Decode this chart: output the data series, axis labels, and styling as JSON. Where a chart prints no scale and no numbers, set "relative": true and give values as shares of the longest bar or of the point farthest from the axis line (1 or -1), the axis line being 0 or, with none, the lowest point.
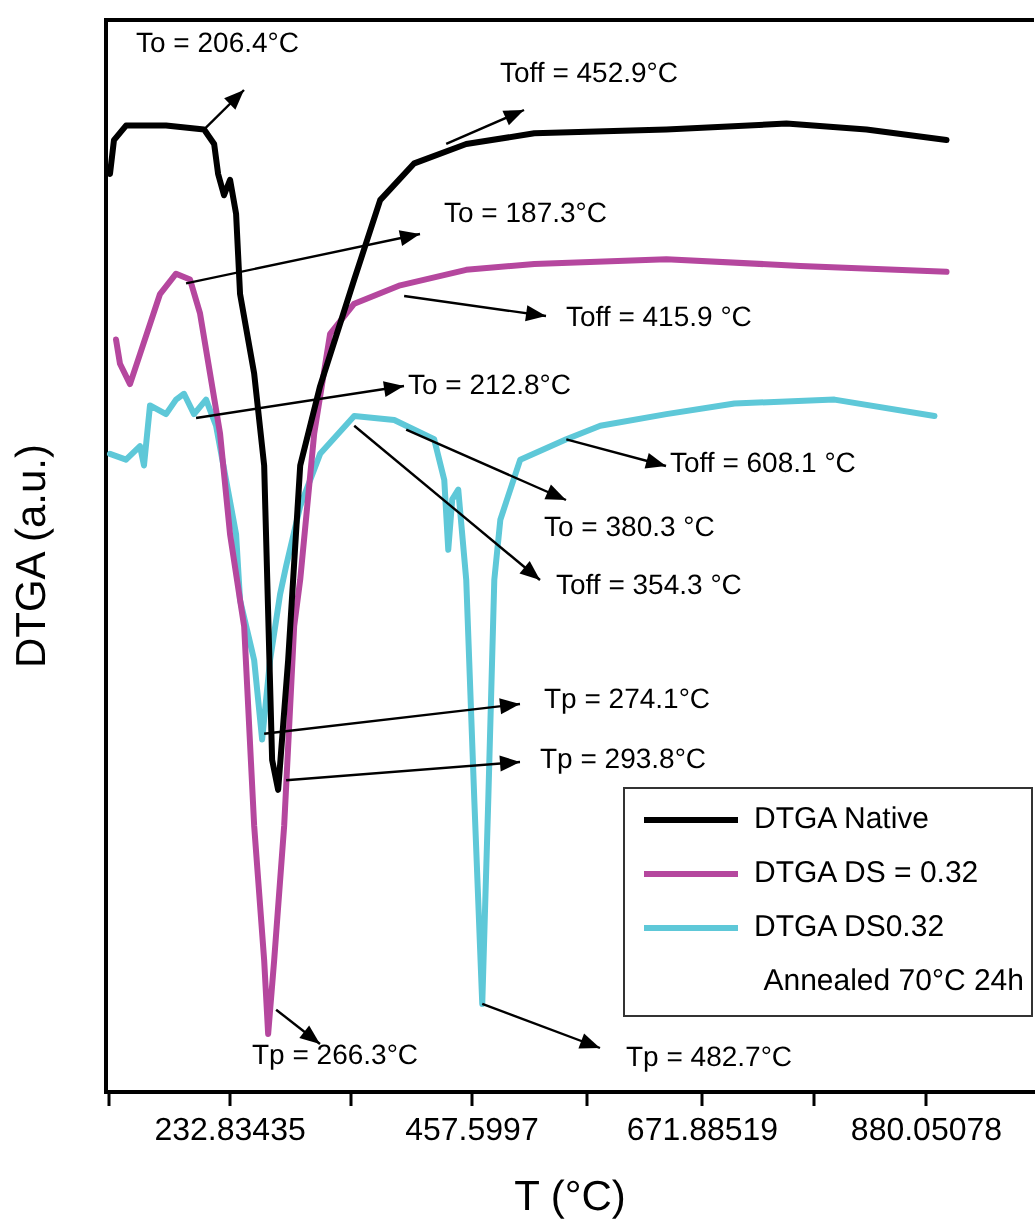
{
  "chart_data": {
    "type": "line",
    "relative": true,
    "xlabel": "T (°C)",
    "ylabel": "DTGA (a.u.)",
    "xlim": [
      117.5,
      980
    ],
    "xticks": [
      {
        "value": 120.45,
        "label": null
      },
      232.83435,
      {
        "value": 345.22,
        "label": null
      },
      457.5997,
      {
        "value": 564.74,
        "label": null
      },
      671.88519,
      {
        "value": 775.97,
        "label": null
      },
      880.05078
    ],
    "marker": "none",
    "line_style": "solid",
    "grid": false,
    "legend": "bottom right",
    "series": [
      {
        "name": "DTGA Native",
        "color": "#000000",
        "x": [
          121.2,
          124.9,
          136.1,
          173.3,
          208.7,
          218,
          221.7,
          227.2,
          232.8,
          238.4,
          242.1,
          255.2,
          264.5,
          271.9,
          277.5,
          286.8,
          298,
          316.5,
          348.2,
          372.3,
          404,
          452.3,
          515.6,
          638.3,
          749.9,
          824.3,
          898.7
        ],
        "values": [
          0.948,
          0.983,
          0.998,
          0.998,
          0.994,
          0.979,
          0.948,
          0.926,
          0.942,
          0.907,
          0.824,
          0.742,
          0.647,
          0.343,
          0.312,
          0.446,
          0.647,
          0.729,
          0.839,
          0.921,
          0.959,
          0.979,
          0.99,
          0.994,
          1.0,
          0.994,
          0.983
        ]
      },
      {
        "name": "DTGA DS = 0.32",
        "color": "#b5479e",
        "x": [
          126.8,
          130.5,
          139.8,
          149.1,
          167.7,
          182.6,
          195.6,
          204.9,
          214.2,
          223.5,
          232.8,
          242.1,
          245.9,
          255.2,
          264.5,
          268.2,
          273.8,
          283.1,
          292.4,
          298,
          311,
          325.8,
          348.2,
          390.9,
          452.3,
          515.6,
          638.3,
          763,
          898.7
        ],
        "values": [
          0.777,
          0.752,
          0.731,
          0.762,
          0.824,
          0.845,
          0.839,
          0.804,
          0.742,
          0.68,
          0.576,
          0.508,
          0.481,
          0.275,
          0.136,
          0.06,
          0.136,
          0.275,
          0.481,
          0.529,
          0.68,
          0.783,
          0.814,
          0.833,
          0.849,
          0.855,
          0.86,
          0.853,
          0.847
        ]
      },
      {
        "name": "DTGA DS0.32",
        "color": "#5ec8d8",
        "x": [
          121.2,
          136.1,
          149.1,
          152.8,
          158.4,
          173.3,
          182.6,
          190,
          199.3,
          210.5,
          219.8,
          229.1,
          238.4,
          242.1,
          255.2,
          262.6,
          270,
          279.3,
          284.9,
          298,
          316.5,
          348.2,
          385.4,
          422.5,
          431.9,
          435.6,
          439.3,
          444.9,
          452.3,
          459.8,
          467.2,
          472.8,
          478.4,
          484,
          502.5,
          545.3,
          576.9,
          638.3,
          701.6,
          794.5,
          887.5
        ],
        "values": [
          0.659,
          0.653,
          0.667,
          0.647,
          0.709,
          0.7,
          0.715,
          0.721,
          0.7,
          0.715,
          0.688,
          0.632,
          0.576,
          0.508,
          0.446,
          0.364,
          0.446,
          0.514,
          0.543,
          0.605,
          0.659,
          0.698,
          0.694,
          0.674,
          0.632,
          0.56,
          0.612,
          0.622,
          0.529,
          0.302,
          0.091,
          0.302,
          0.529,
          0.591,
          0.653,
          0.674,
          0.688,
          0.7,
          0.711,
          0.715,
          0.698
        ]
      }
    ],
    "annotations": [
      {
        "text": "To = 206.4°C",
        "x": 208.7,
        "y": 0.994
      },
      {
        "text": "Toff = 452.9°C",
        "x": 433.7,
        "y": 0.979
      },
      {
        "text": "To = 187.3°C",
        "x": 191.9,
        "y": 0.835
      },
      {
        "text": "Toff = 415.9 °C",
        "x": 394.6,
        "y": 0.822
      },
      {
        "text": "To = 212.8°C",
        "x": 201.2,
        "y": 0.696
      },
      {
        "text": "Toff = 608.1 °C",
        "x": 545.3,
        "y": 0.674
      },
      {
        "text": "To = 380.3 °C",
        "x": 396.5,
        "y": 0.684
      },
      {
        "text": "Toff = 354.3 °C",
        "x": 348.2,
        "y": 0.688
      },
      {
        "text": "Tp = 274.1°C",
        "x": 264.5,
        "y": 0.37
      },
      {
        "text": "Tp = 293.8°C",
        "x": 284.9,
        "y": 0.322
      },
      {
        "text": "Tp = 266.3°C",
        "x": 275.6,
        "y": 0.085
      },
      {
        "text": "Tp = 482.7°C",
        "x": 467.2,
        "y": 0.091
      },
      "Annealed 70°C 24h"
    ]
  }
}
